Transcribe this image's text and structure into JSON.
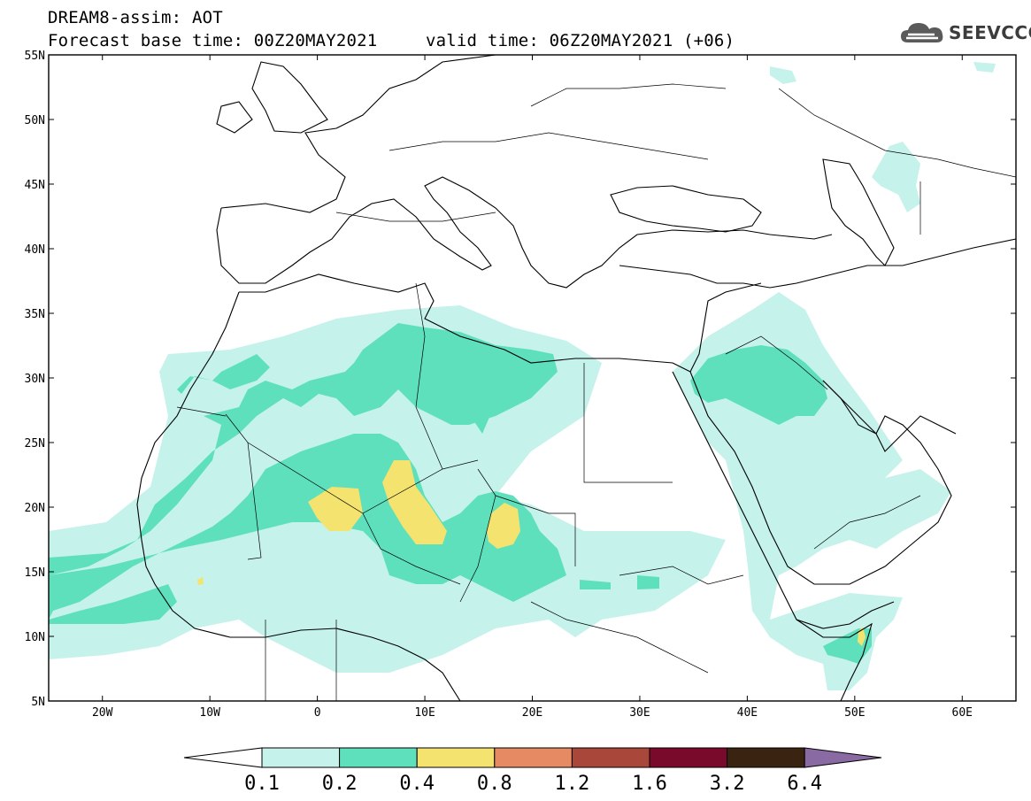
{
  "header": {
    "line1": "DREAM8-assim: AOT",
    "line2": "Forecast base time: 00Z20MAY2021",
    "line3": "valid time: 06Z20MAY2021 (+06)",
    "logo_text": "SEEVCCC",
    "logo_icon": "cloud-icon"
  },
  "map": {
    "lat_labels": [
      "55N",
      "50N",
      "45N",
      "40N",
      "35N",
      "30N",
      "25N",
      "20N",
      "15N",
      "10N",
      "5N"
    ],
    "lon_labels": [
      "20W",
      "10W",
      "0",
      "10E",
      "20E",
      "30E",
      "40E",
      "50E",
      "60E"
    ],
    "lat_range": [
      5,
      55
    ],
    "lon_range": [
      -25,
      65
    ],
    "colors": {
      "background": "#ffffff",
      "coast": "#000000",
      "level_0_1": "#c6f2ec",
      "level_0_2": "#5ee0bd",
      "level_0_4": "#f4e36f"
    }
  },
  "colorbar": {
    "levels": [
      "0.1",
      "0.2",
      "0.4",
      "0.8",
      "1.2",
      "1.6",
      "3.2",
      "6.4"
    ],
    "colors": [
      "#ffffff",
      "#c6f2ec",
      "#5ee0bd",
      "#f4e36f",
      "#e58a62",
      "#a8473a",
      "#7a0a2c",
      "#3a2310",
      "#8a6aa2"
    ]
  }
}
